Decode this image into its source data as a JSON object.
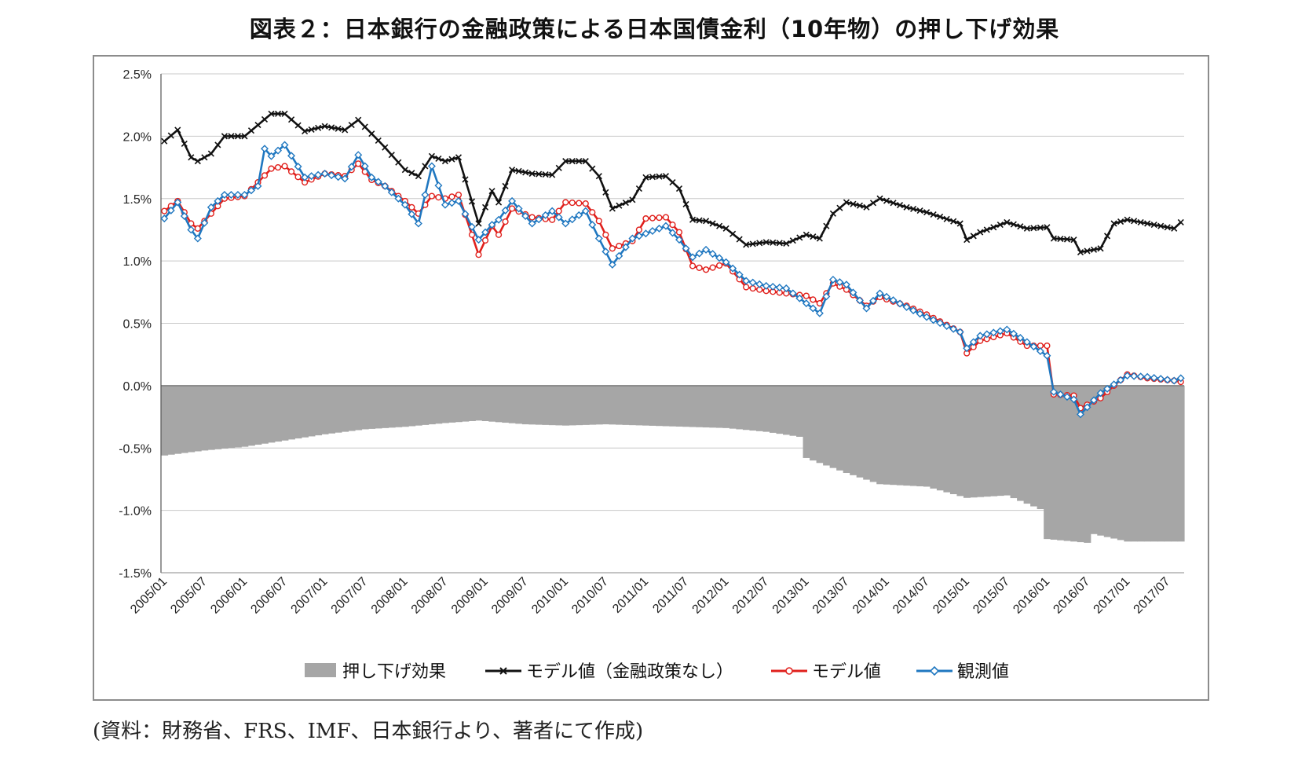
{
  "title": "図表２：日本銀行の金融政策による日本国債金利（10年物）の押し下げ効果",
  "source": "(資料：財務省、FRS、IMF、日本銀行より、著者にて作成)",
  "chart_data": {
    "type": "line",
    "y_axis": {
      "ylim": [
        -1.5,
        2.5
      ],
      "ticks": [
        2.5,
        2.0,
        1.5,
        1.0,
        0.5,
        0.0,
        -0.5,
        -1.0,
        -1.5
      ],
      "tick_labels": [
        "2.5%",
        "2.0%",
        "1.5%",
        "1.0%",
        "0.5%",
        "0.0%",
        "-0.5%",
        "-1.0%",
        "-1.5%"
      ]
    },
    "x_tick_labels": [
      "2005/01",
      "2005/07",
      "2006/01",
      "2006/07",
      "2007/01",
      "2007/07",
      "2008/01",
      "2008/07",
      "2009/01",
      "2009/07",
      "2010/01",
      "2010/07",
      "2011/01",
      "2011/07",
      "2012/01",
      "2012/07",
      "2013/01",
      "2013/07",
      "2014/01",
      "2014/07",
      "2015/01",
      "2015/07",
      "2016/01",
      "2016/07",
      "2017/01",
      "2017/07"
    ],
    "grid": true,
    "legend_position": "bottom",
    "x_start": "2005/01",
    "series": [
      {
        "name": "押し下げ効果",
        "kind": "area",
        "color": "#a6a6a6",
        "anchors": [
          [
            "2005/01",
            -0.56
          ],
          [
            "2005/07",
            -0.52
          ],
          [
            "2006/01",
            -0.49
          ],
          [
            "2006/07",
            -0.44
          ],
          [
            "2007/01",
            -0.39
          ],
          [
            "2007/07",
            -0.35
          ],
          [
            "2008/01",
            -0.33
          ],
          [
            "2008/07",
            -0.3
          ],
          [
            "2008/12",
            -0.28
          ],
          [
            "2009/07",
            -0.31
          ],
          [
            "2010/01",
            -0.32
          ],
          [
            "2010/07",
            -0.31
          ],
          [
            "2011/01",
            -0.32
          ],
          [
            "2011/07",
            -0.33
          ],
          [
            "2012/01",
            -0.34
          ],
          [
            "2012/07",
            -0.37
          ],
          [
            "2012/12",
            -0.41
          ],
          [
            "2013/01",
            -0.58
          ],
          [
            "2013/07",
            -0.7
          ],
          [
            "2013/12",
            -0.79
          ],
          [
            "2014/07",
            -0.81
          ],
          [
            "2015/01",
            -0.9
          ],
          [
            "2015/07",
            -0.88
          ],
          [
            "2015/12",
            -0.99
          ],
          [
            "2016/01",
            -1.23
          ],
          [
            "2016/07",
            -1.26
          ],
          [
            "2016/08",
            -1.19
          ],
          [
            "2017/01",
            -1.25
          ],
          [
            "2017/09",
            -1.25
          ]
        ]
      },
      {
        "name": "モデル値（金融政策なし）",
        "kind": "line",
        "color": "#111111",
        "marker": "x",
        "anchors": [
          [
            "2005/01",
            1.96
          ],
          [
            "2005/03",
            2.05
          ],
          [
            "2005/05",
            1.83
          ],
          [
            "2005/06",
            1.8
          ],
          [
            "2005/08",
            1.86
          ],
          [
            "2005/10",
            2.0
          ],
          [
            "2006/01",
            2.0
          ],
          [
            "2006/05",
            2.18
          ],
          [
            "2006/07",
            2.18
          ],
          [
            "2006/10",
            2.04
          ],
          [
            "2007/01",
            2.08
          ],
          [
            "2007/04",
            2.05
          ],
          [
            "2007/06",
            2.13
          ],
          [
            "2007/08",
            2.02
          ],
          [
            "2007/10",
            1.91
          ],
          [
            "2008/01",
            1.73
          ],
          [
            "2008/03",
            1.68
          ],
          [
            "2008/05",
            1.84
          ],
          [
            "2008/07",
            1.8
          ],
          [
            "2008/09",
            1.83
          ],
          [
            "2008/12",
            1.3
          ],
          [
            "2009/02",
            1.56
          ],
          [
            "2009/03",
            1.47
          ],
          [
            "2009/05",
            1.73
          ],
          [
            "2009/08",
            1.7
          ],
          [
            "2009/11",
            1.69
          ],
          [
            "2010/01",
            1.8
          ],
          [
            "2010/04",
            1.8
          ],
          [
            "2010/06",
            1.68
          ],
          [
            "2010/08",
            1.42
          ],
          [
            "2010/11",
            1.49
          ],
          [
            "2011/01",
            1.67
          ],
          [
            "2011/04",
            1.68
          ],
          [
            "2011/06",
            1.58
          ],
          [
            "2011/08",
            1.33
          ],
          [
            "2011/10",
            1.32
          ],
          [
            "2012/01",
            1.26
          ],
          [
            "2012/04",
            1.13
          ],
          [
            "2012/07",
            1.15
          ],
          [
            "2012/10",
            1.14
          ],
          [
            "2013/01",
            1.21
          ],
          [
            "2013/03",
            1.18
          ],
          [
            "2013/05",
            1.38
          ],
          [
            "2013/07",
            1.47
          ],
          [
            "2013/10",
            1.43
          ],
          [
            "2013/12",
            1.5
          ],
          [
            "2014/04",
            1.43
          ],
          [
            "2014/07",
            1.39
          ],
          [
            "2014/12",
            1.3
          ],
          [
            "2015/01",
            1.17
          ],
          [
            "2015/03",
            1.23
          ],
          [
            "2015/07",
            1.31
          ],
          [
            "2015/10",
            1.26
          ],
          [
            "2016/01",
            1.27
          ],
          [
            "2016/02",
            1.18
          ],
          [
            "2016/05",
            1.17
          ],
          [
            "2016/06",
            1.07
          ],
          [
            "2016/09",
            1.1
          ],
          [
            "2016/11",
            1.3
          ],
          [
            "2017/01",
            1.33
          ],
          [
            "2017/04",
            1.3
          ],
          [
            "2017/08",
            1.26
          ],
          [
            "2017/09",
            1.31
          ]
        ]
      },
      {
        "name": "モデル値",
        "kind": "line",
        "color": "#e0201c",
        "marker": "circle",
        "anchors": [
          [
            "2005/01",
            1.4
          ],
          [
            "2005/03",
            1.48
          ],
          [
            "2005/05",
            1.3
          ],
          [
            "2005/06",
            1.26
          ],
          [
            "2005/08",
            1.38
          ],
          [
            "2005/10",
            1.5
          ],
          [
            "2006/01",
            1.52
          ],
          [
            "2006/05",
            1.74
          ],
          [
            "2006/07",
            1.76
          ],
          [
            "2006/10",
            1.63
          ],
          [
            "2007/01",
            1.7
          ],
          [
            "2007/04",
            1.68
          ],
          [
            "2007/06",
            1.78
          ],
          [
            "2007/08",
            1.65
          ],
          [
            "2007/10",
            1.6
          ],
          [
            "2008/01",
            1.48
          ],
          [
            "2008/03",
            1.38
          ],
          [
            "2008/05",
            1.52
          ],
          [
            "2008/07",
            1.5
          ],
          [
            "2008/09",
            1.53
          ],
          [
            "2008/12",
            1.05
          ],
          [
            "2009/02",
            1.28
          ],
          [
            "2009/03",
            1.21
          ],
          [
            "2009/05",
            1.42
          ],
          [
            "2009/08",
            1.35
          ],
          [
            "2009/11",
            1.33
          ],
          [
            "2010/01",
            1.47
          ],
          [
            "2010/04",
            1.46
          ],
          [
            "2010/06",
            1.32
          ],
          [
            "2010/08",
            1.1
          ],
          [
            "2010/11",
            1.16
          ],
          [
            "2011/01",
            1.34
          ],
          [
            "2011/04",
            1.35
          ],
          [
            "2011/06",
            1.23
          ],
          [
            "2011/08",
            0.96
          ],
          [
            "2011/10",
            0.93
          ],
          [
            "2012/01",
            0.98
          ],
          [
            "2012/04",
            0.79
          ],
          [
            "2012/07",
            0.76
          ],
          [
            "2012/10",
            0.74
          ],
          [
            "2013/01",
            0.72
          ],
          [
            "2013/03",
            0.66
          ],
          [
            "2013/05",
            0.82
          ],
          [
            "2013/07",
            0.77
          ],
          [
            "2013/10",
            0.64
          ],
          [
            "2013/12",
            0.71
          ],
          [
            "2014/04",
            0.64
          ],
          [
            "2014/07",
            0.57
          ],
          [
            "2014/12",
            0.43
          ],
          [
            "2015/01",
            0.26
          ],
          [
            "2015/03",
            0.36
          ],
          [
            "2015/07",
            0.42
          ],
          [
            "2015/10",
            0.32
          ],
          [
            "2016/01",
            0.32
          ],
          [
            "2016/02",
            -0.07
          ],
          [
            "2016/05",
            -0.08
          ],
          [
            "2016/06",
            -0.18
          ],
          [
            "2016/09",
            -0.1
          ],
          [
            "2016/11",
            0.0
          ],
          [
            "2017/01",
            0.09
          ],
          [
            "2017/04",
            0.06
          ],
          [
            "2017/08",
            0.04
          ],
          [
            "2017/09",
            0.03
          ]
        ]
      },
      {
        "name": "観測値",
        "kind": "line",
        "color": "#1f77c0",
        "marker": "diamond",
        "anchors": [
          [
            "2005/01",
            1.34
          ],
          [
            "2005/03",
            1.47
          ],
          [
            "2005/05",
            1.25
          ],
          [
            "2005/06",
            1.18
          ],
          [
            "2005/08",
            1.43
          ],
          [
            "2005/10",
            1.53
          ],
          [
            "2006/01",
            1.53
          ],
          [
            "2006/03",
            1.6
          ],
          [
            "2006/04",
            1.9
          ],
          [
            "2006/05",
            1.84
          ],
          [
            "2006/07",
            1.93
          ],
          [
            "2006/10",
            1.67
          ],
          [
            "2007/01",
            1.7
          ],
          [
            "2007/04",
            1.66
          ],
          [
            "2007/06",
            1.85
          ],
          [
            "2007/08",
            1.67
          ],
          [
            "2007/10",
            1.6
          ],
          [
            "2008/01",
            1.45
          ],
          [
            "2008/03",
            1.3
          ],
          [
            "2008/05",
            1.76
          ],
          [
            "2008/07",
            1.45
          ],
          [
            "2008/09",
            1.48
          ],
          [
            "2008/12",
            1.17
          ],
          [
            "2009/02",
            1.29
          ],
          [
            "2009/03",
            1.33
          ],
          [
            "2009/05",
            1.48
          ],
          [
            "2009/08",
            1.3
          ],
          [
            "2009/11",
            1.4
          ],
          [
            "2010/01",
            1.3
          ],
          [
            "2010/04",
            1.4
          ],
          [
            "2010/06",
            1.18
          ],
          [
            "2010/08",
            0.97
          ],
          [
            "2010/11",
            1.18
          ],
          [
            "2011/01",
            1.22
          ],
          [
            "2011/04",
            1.28
          ],
          [
            "2011/06",
            1.17
          ],
          [
            "2011/08",
            1.03
          ],
          [
            "2011/10",
            1.09
          ],
          [
            "2012/01",
            0.99
          ],
          [
            "2012/04",
            0.84
          ],
          [
            "2012/07",
            0.8
          ],
          [
            "2012/10",
            0.78
          ],
          [
            "2013/01",
            0.66
          ],
          [
            "2013/03",
            0.58
          ],
          [
            "2013/05",
            0.85
          ],
          [
            "2013/07",
            0.81
          ],
          [
            "2013/10",
            0.62
          ],
          [
            "2013/12",
            0.74
          ],
          [
            "2014/04",
            0.63
          ],
          [
            "2014/07",
            0.55
          ],
          [
            "2014/12",
            0.43
          ],
          [
            "2015/01",
            0.3
          ],
          [
            "2015/03",
            0.4
          ],
          [
            "2015/07",
            0.45
          ],
          [
            "2015/10",
            0.35
          ],
          [
            "2016/01",
            0.24
          ],
          [
            "2016/02",
            -0.05
          ],
          [
            "2016/05",
            -0.11
          ],
          [
            "2016/06",
            -0.23
          ],
          [
            "2016/09",
            -0.06
          ],
          [
            "2016/11",
            0.01
          ],
          [
            "2017/01",
            0.08
          ],
          [
            "2017/04",
            0.07
          ],
          [
            "2017/08",
            0.04
          ],
          [
            "2017/09",
            0.06
          ]
        ]
      }
    ]
  }
}
